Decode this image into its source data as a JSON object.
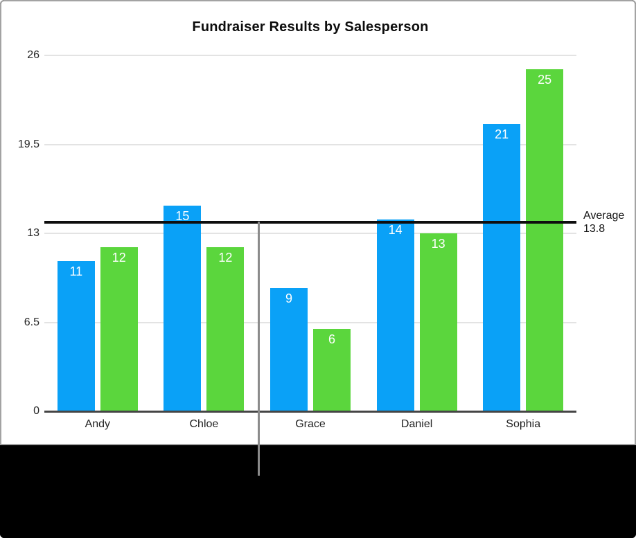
{
  "page_background": "#000000",
  "panel": {
    "background": "#ffffff",
    "border_color": "#a3a3a3"
  },
  "colors": {
    "gridline": "#e3e3e3",
    "axis": "#454545",
    "callout_line": "#8b8b8b",
    "value_label_text": "#ffffff",
    "tick_text": "#262626"
  },
  "chart_data": {
    "type": "bar",
    "title": "Fundraiser Results by Salesperson",
    "categories": [
      "Andy",
      "Chloe",
      "Grace",
      "Daniel",
      "Sophia"
    ],
    "series": [
      {
        "color": "#0aa1f7",
        "values": [
          11,
          15,
          9,
          14,
          21
        ]
      },
      {
        "color": "#5bd63d",
        "values": [
          12,
          12,
          6,
          13,
          25
        ]
      }
    ],
    "value_labels": true,
    "y_ticks": [
      0,
      6.5,
      13,
      19.5,
      26
    ],
    "ylim": [
      0,
      26
    ],
    "grid": true,
    "legend": "none",
    "reference_line": {
      "label": "Average",
      "value_text": "13.8",
      "value": 13.8,
      "color": "#0e0e0e"
    }
  }
}
